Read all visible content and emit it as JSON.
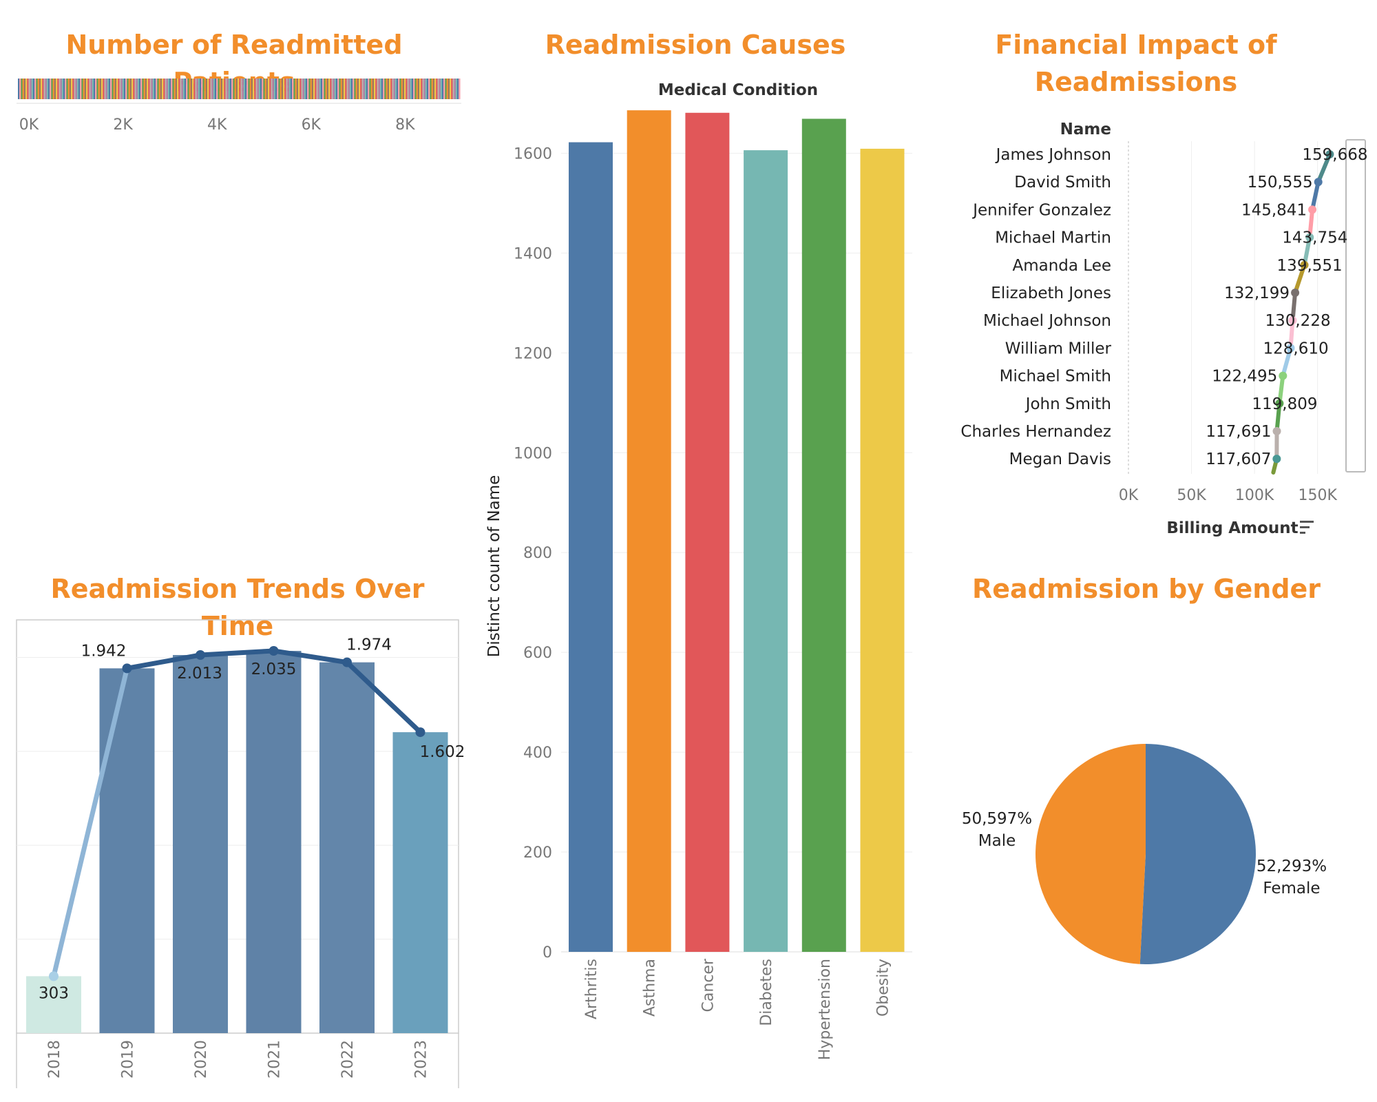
{
  "titles": {
    "patients": "Number of Readmitted Patients",
    "causes": "Readmission Causes",
    "financial_line1": "Financial Impact of",
    "financial_line2": "Readmissions",
    "trends": "Readmission Trends Over Time",
    "gender": "Readmission by Gender"
  },
  "colors": {
    "title": "#f28e2b",
    "blue": "#4e79a7",
    "orange": "#f28e2b",
    "red": "#e15759",
    "teal": "#76b7b2",
    "green": "#59a14f",
    "yellow": "#edc948"
  },
  "chart_data": [
    {
      "id": "patients",
      "type": "bar",
      "orientation": "horizontal-stacked",
      "x_ticks": [
        "0K",
        "2K",
        "4K",
        "6K",
        "8K"
      ],
      "xlim": [
        0,
        9400
      ],
      "total": 9400
    },
    {
      "id": "causes",
      "type": "bar",
      "header": "Medical Condition",
      "ylabel": "Distinct count of Name",
      "categories": [
        "Arthritis",
        "Asthma",
        "Cancer",
        "Diabetes",
        "Hypertension",
        "Obesity"
      ],
      "values": [
        1622,
        1686,
        1681,
        1606,
        1669,
        1609
      ],
      "colors": [
        "#4e79a7",
        "#f28e2b",
        "#e15759",
        "#76b7b2",
        "#59a14f",
        "#edc948"
      ],
      "y_ticks": [
        "0",
        "200",
        "400",
        "600",
        "800",
        "1000",
        "1200",
        "1400",
        "1600"
      ],
      "ylim": [
        0,
        1700
      ]
    },
    {
      "id": "financial",
      "type": "line",
      "header": "Name",
      "xlabel": "Billing Amount",
      "names": [
        "James Johnson",
        "David Smith",
        "Jennifer Gonzalez",
        "Michael Martin",
        "Amanda Lee",
        "Elizabeth Jones",
        "Michael Johnson",
        "William Miller",
        "Michael Smith",
        "John Smith",
        "Charles Hernandez",
        "Megan Davis"
      ],
      "values": [
        159668,
        150555,
        145841,
        143754,
        139551,
        132199,
        130228,
        128610,
        122495,
        119809,
        117691,
        117607
      ],
      "labels": [
        "159,668",
        "150,555",
        "145,841",
        "143,754",
        "139,551",
        "132,199",
        "130,228",
        "128,610",
        "122,495",
        "119,809",
        "117,691",
        "117,607"
      ],
      "point_colors": [
        "#4e8a8a",
        "#4e79a7",
        "#ff9da7",
        "#86bcb6",
        "#b6992d",
        "#79706e",
        "#fabfd2",
        "#a0cbe8",
        "#8cd17d",
        "#59a14f",
        "#bab0ac",
        "#499894"
      ],
      "x_ticks": [
        "0K",
        "50K",
        "100K",
        "150K"
      ],
      "xlim": [
        0,
        160000
      ]
    },
    {
      "id": "trends",
      "type": "bar",
      "categories": [
        "2018",
        "2019",
        "2020",
        "2021",
        "2022",
        "2023"
      ],
      "values": [
        303,
        1942,
        2013,
        2035,
        1974,
        1602
      ],
      "labels": [
        "303",
        "1.942",
        "2.013",
        "2.035",
        "1.974",
        "1.602"
      ],
      "line": true,
      "ylim": [
        0,
        2200
      ]
    },
    {
      "id": "gender",
      "type": "pie",
      "slices": [
        {
          "name": "Female",
          "label": "52,293%",
          "value": 52.293,
          "color": "#4e79a7"
        },
        {
          "name": "Male",
          "label": "50,597%",
          "value": 50.597,
          "color": "#f28e2b"
        }
      ]
    }
  ]
}
